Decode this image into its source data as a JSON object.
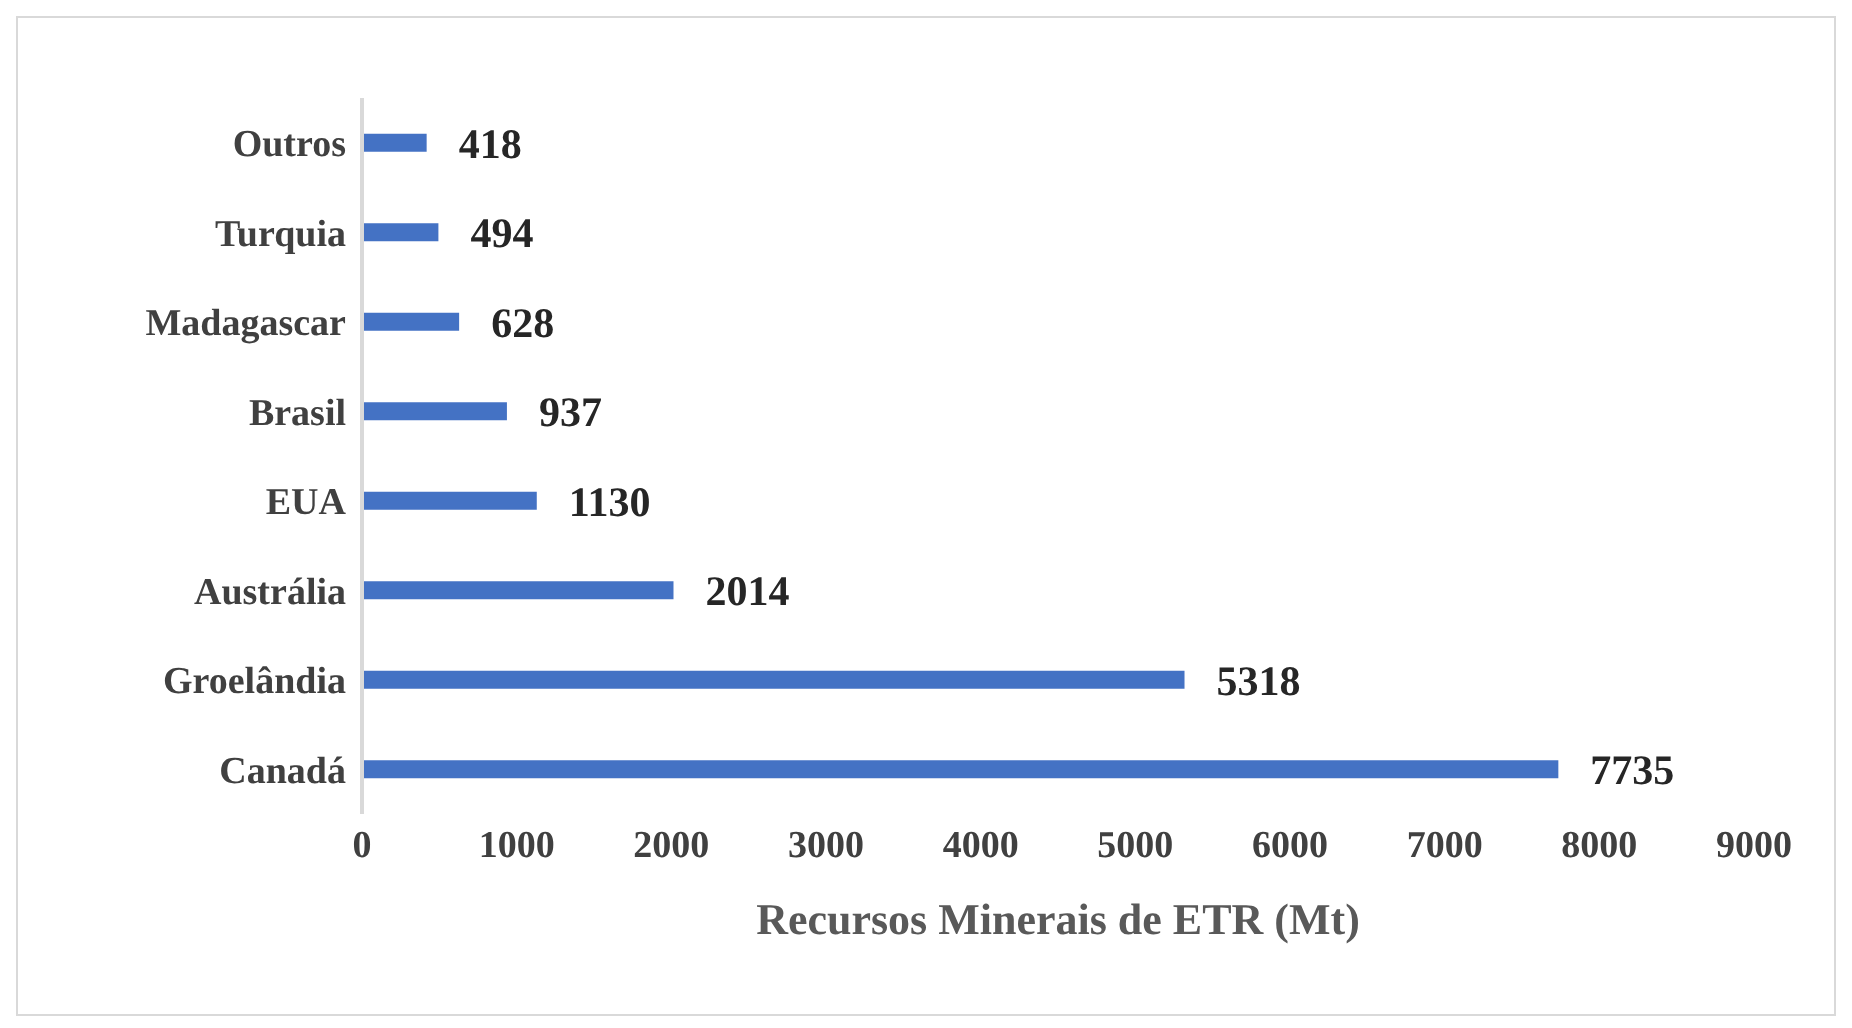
{
  "chart_data": {
    "type": "bar",
    "orientation": "horizontal",
    "xlabel": "Recursos Minerais  de ETR (Mt)",
    "categories": [
      "Outros",
      "Turquia",
      "Madagascar",
      "Brasil",
      "EUA",
      "Austrália",
      "Groelândia",
      "Canadá"
    ],
    "values": [
      418,
      494,
      628,
      937,
      1130,
      2014,
      5318,
      7735
    ],
    "color": "#4472c4",
    "xlim": [
      0,
      9000
    ],
    "xticks": [
      0,
      1000,
      2000,
      3000,
      4000,
      5000,
      6000,
      7000,
      8000,
      9000
    ],
    "grid": false,
    "data_labels": true,
    "legend": false
  }
}
